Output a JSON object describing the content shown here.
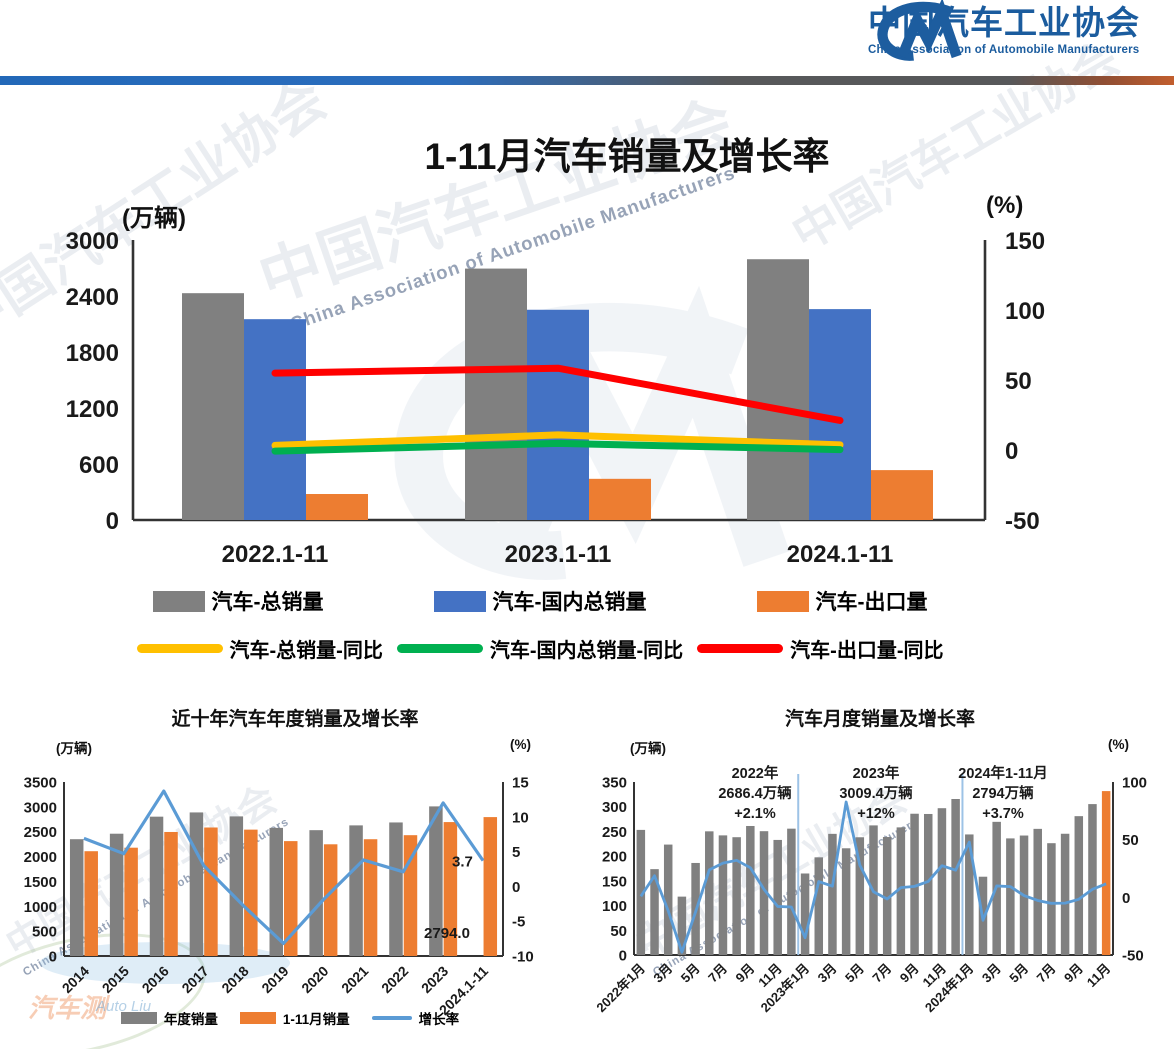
{
  "header": {
    "brand_cn": "中国汽车工业协会",
    "brand_en": "China Association of Automobile Manufacturers"
  },
  "watermark": {
    "cn": "中国汽车工业协会",
    "en": "China Association of Automobile Manufacturers",
    "credit_cn": "汽车测",
    "credit_en": "Auto Liu"
  },
  "colors": {
    "brand_blue": "#1b5c9e",
    "bar_gray": "#808080",
    "bar_blue": "#4472C4",
    "bar_orange": "#ED7D31",
    "line_yellow": "#FFC000",
    "line_green": "#00B050",
    "line_red": "#FF0000",
    "growth_line_blue": "#5B9BD5",
    "separator_blue": "#9DC3E6"
  },
  "chart_data": [
    {
      "id": "main",
      "type": "bar",
      "title": "1-11月汽车销量及增长率",
      "left_axis": {
        "label": "(万辆)",
        "ticks": [
          0,
          600,
          1200,
          1800,
          2400,
          3000
        ]
      },
      "right_axis": {
        "label": "(%)",
        "ticks": [
          -50,
          0,
          50,
          100,
          150
        ]
      },
      "categories": [
        "2022.1-11",
        "2023.1-11",
        "2024.1-11"
      ],
      "bar_series": [
        {
          "name": "汽车-总销量",
          "color": "#808080",
          "values": [
            2430.2,
            2693.8,
            2794.0
          ]
        },
        {
          "name": "汽车-国内总销量",
          "color": "#4472C4",
          "values": [
            2151.7,
            2252.6,
            2259.5
          ]
        },
        {
          "name": "汽车-出口量",
          "color": "#ED7D31",
          "values": [
            278.5,
            441.2,
            534.5
          ]
        }
      ],
      "line_series": [
        {
          "name": "汽车-总销量-同比",
          "color": "#FFC000",
          "values": [
            3.3,
            10.8,
            3.7
          ]
        },
        {
          "name": "汽车-国内总销量-同比",
          "color": "#00B050",
          "values": [
            -0.8,
            4.7,
            0.3
          ]
        },
        {
          "name": "汽车-出口量-同比",
          "color": "#FF0000",
          "values": [
            54.9,
            58.4,
            21.1
          ]
        }
      ]
    },
    {
      "id": "annual",
      "type": "bar",
      "title": "近十年汽车年度销量及增长率",
      "left_axis": {
        "label": "(万辆)",
        "ticks": [
          0,
          500,
          1000,
          1500,
          2000,
          2500,
          3000,
          3500
        ]
      },
      "right_axis": {
        "label": "(%)",
        "ticks": [
          -10,
          -5,
          0,
          5,
          10,
          15
        ]
      },
      "categories": [
        "2014",
        "2015",
        "2016",
        "2017",
        "2018",
        "2019",
        "2020",
        "2021",
        "2022",
        "2023",
        "2024.1-11"
      ],
      "bar_series": [
        {
          "name": "年度销量",
          "color": "#808080",
          "values": [
            2349.2,
            2459.8,
            2802.8,
            2887.9,
            2808.1,
            2576.9,
            2531.1,
            2627.5,
            2686.4,
            3009.4,
            null
          ]
        },
        {
          "name": "1-11月销量",
          "color": "#ED7D31",
          "values": [
            2107.9,
            2178.7,
            2494.8,
            2584.9,
            2542.0,
            2311.0,
            2247.0,
            2348.9,
            2430.2,
            2693.8,
            2794.0
          ]
        }
      ],
      "line_series": [
        {
          "name": "增长率",
          "color": "#5B9BD5",
          "values": [
            6.9,
            4.7,
            13.7,
            3.0,
            -2.8,
            -8.2,
            -1.9,
            3.8,
            2.1,
            12.0,
            3.7
          ]
        }
      ],
      "data_labels": {
        "line_last": "3.7",
        "bar_last": "2794.0"
      }
    },
    {
      "id": "monthly",
      "type": "bar",
      "title": "汽车月度销量及增长率",
      "left_axis": {
        "label": "(万辆)",
        "ticks": [
          0,
          50,
          100,
          150,
          200,
          250,
          300,
          350
        ]
      },
      "right_axis": {
        "label": "(%)",
        "ticks": [
          -50,
          0,
          50,
          100
        ]
      },
      "x_tick_labels": [
        "2022年1月",
        "3月",
        "5月",
        "7月",
        "9月",
        "11月",
        "2023年1月",
        "3月",
        "5月",
        "7月",
        "9月",
        "11月",
        "2024年1月",
        "3月",
        "5月",
        "7月",
        "9月",
        "11月"
      ],
      "bar_color": "#808080",
      "highlight_last_color": "#ED7D31",
      "bar_values": [
        253.1,
        173.7,
        223.4,
        118.1,
        186.2,
        250.2,
        242.0,
        238.3,
        261.0,
        250.5,
        232.8,
        255.6,
        164.9,
        197.6,
        245.1,
        215.9,
        238.2,
        262.2,
        238.7,
        258.2,
        285.8,
        285.3,
        297.0,
        315.6,
        243.9,
        158.4,
        269.4,
        235.9,
        241.7,
        255.2,
        226.2,
        245.3,
        280.9,
        305.3,
        331.6
      ],
      "line": {
        "name": "增长率",
        "color": "#5B9BD5",
        "values": [
          0.9,
          18.7,
          -11.7,
          -47.6,
          -12.6,
          23.8,
          29.7,
          32.1,
          25.7,
          6.9,
          -7.9,
          -8.4,
          -35.0,
          13.7,
          9.7,
          82.7,
          27.9,
          4.8,
          -1.4,
          8.4,
          9.5,
          13.8,
          27.4,
          23.5,
          47.9,
          -19.9,
          9.9,
          9.3,
          1.5,
          -2.7,
          -5.2,
          -5.0,
          -1.7,
          7.0,
          11.7
        ]
      },
      "separators_after_index": [
        11,
        23
      ],
      "annotations": [
        {
          "lines": [
            "2022年",
            "2686.4万辆",
            "+2.1%"
          ]
        },
        {
          "lines": [
            "2023年",
            "3009.4万辆",
            "+12%"
          ]
        },
        {
          "lines": [
            "2024年1-11月",
            "2794万辆",
            "+3.7%"
          ]
        }
      ]
    }
  ]
}
